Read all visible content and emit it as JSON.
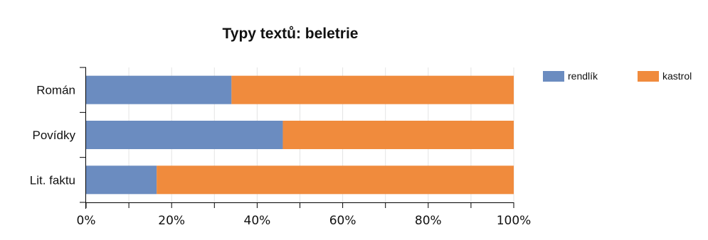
{
  "chart_data": {
    "type": "bar",
    "orientation": "horizontal",
    "stacked": true,
    "title": "Typy textů: beletrie",
    "categories": [
      "Román",
      "Povídky",
      "Lit. faktu"
    ],
    "series": [
      {
        "name": "rendlík",
        "values": [
          34,
          46,
          16.5
        ],
        "color": "#6b8cc0"
      },
      {
        "name": "kastrol",
        "values": [
          66,
          54,
          83.5
        ],
        "color": "#f08b3d"
      }
    ],
    "xlim": [
      0,
      100
    ],
    "xticks": [
      0,
      20,
      40,
      60,
      80,
      100
    ],
    "xtick_labels": [
      "0%",
      "20%",
      "40%",
      "60%",
      "80%",
      "100%"
    ],
    "xlabel": "",
    "ylabel": "",
    "grid": true,
    "legend_position": "top-right"
  }
}
